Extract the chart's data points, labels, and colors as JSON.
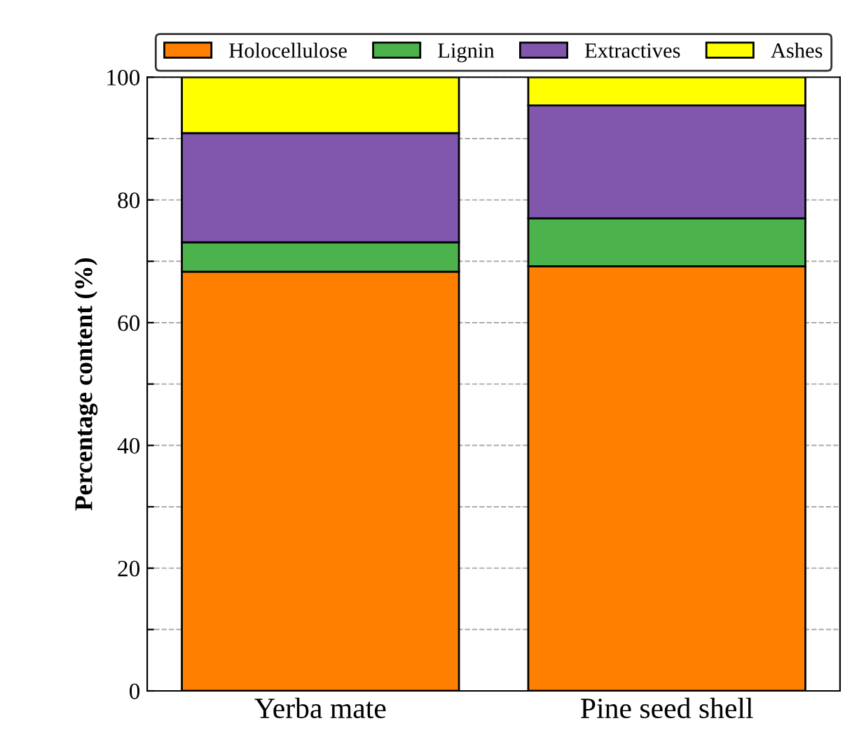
{
  "chart_data": {
    "type": "bar",
    "stacked": true,
    "ylabel": "Percentage content (%)",
    "categories": [
      "Yerba mate",
      "Pine seed shell"
    ],
    "series": [
      {
        "name": "Holocellulose",
        "color": "#ff8000",
        "values": [
          68.3,
          69.2
        ]
      },
      {
        "name": "Lignin",
        "color": "#4cb34c",
        "values": [
          4.8,
          7.8
        ]
      },
      {
        "name": "Extractives",
        "color": "#8156ad",
        "values": [
          17.8,
          18.4
        ]
      },
      {
        "name": "Ashes",
        "color": "#ffff00",
        "values": [
          9.1,
          4.6
        ]
      }
    ],
    "ylim": [
      0,
      100
    ],
    "yticks": [
      0,
      {
        "value": 10,
        "label": null
      },
      20,
      {
        "value": 30,
        "label": null
      },
      40,
      {
        "value": 50,
        "label": null
      },
      60,
      {
        "value": 70,
        "label": null
      },
      80,
      {
        "value": 90,
        "label": null
      },
      100
    ],
    "grid": "y",
    "legend": "top"
  }
}
